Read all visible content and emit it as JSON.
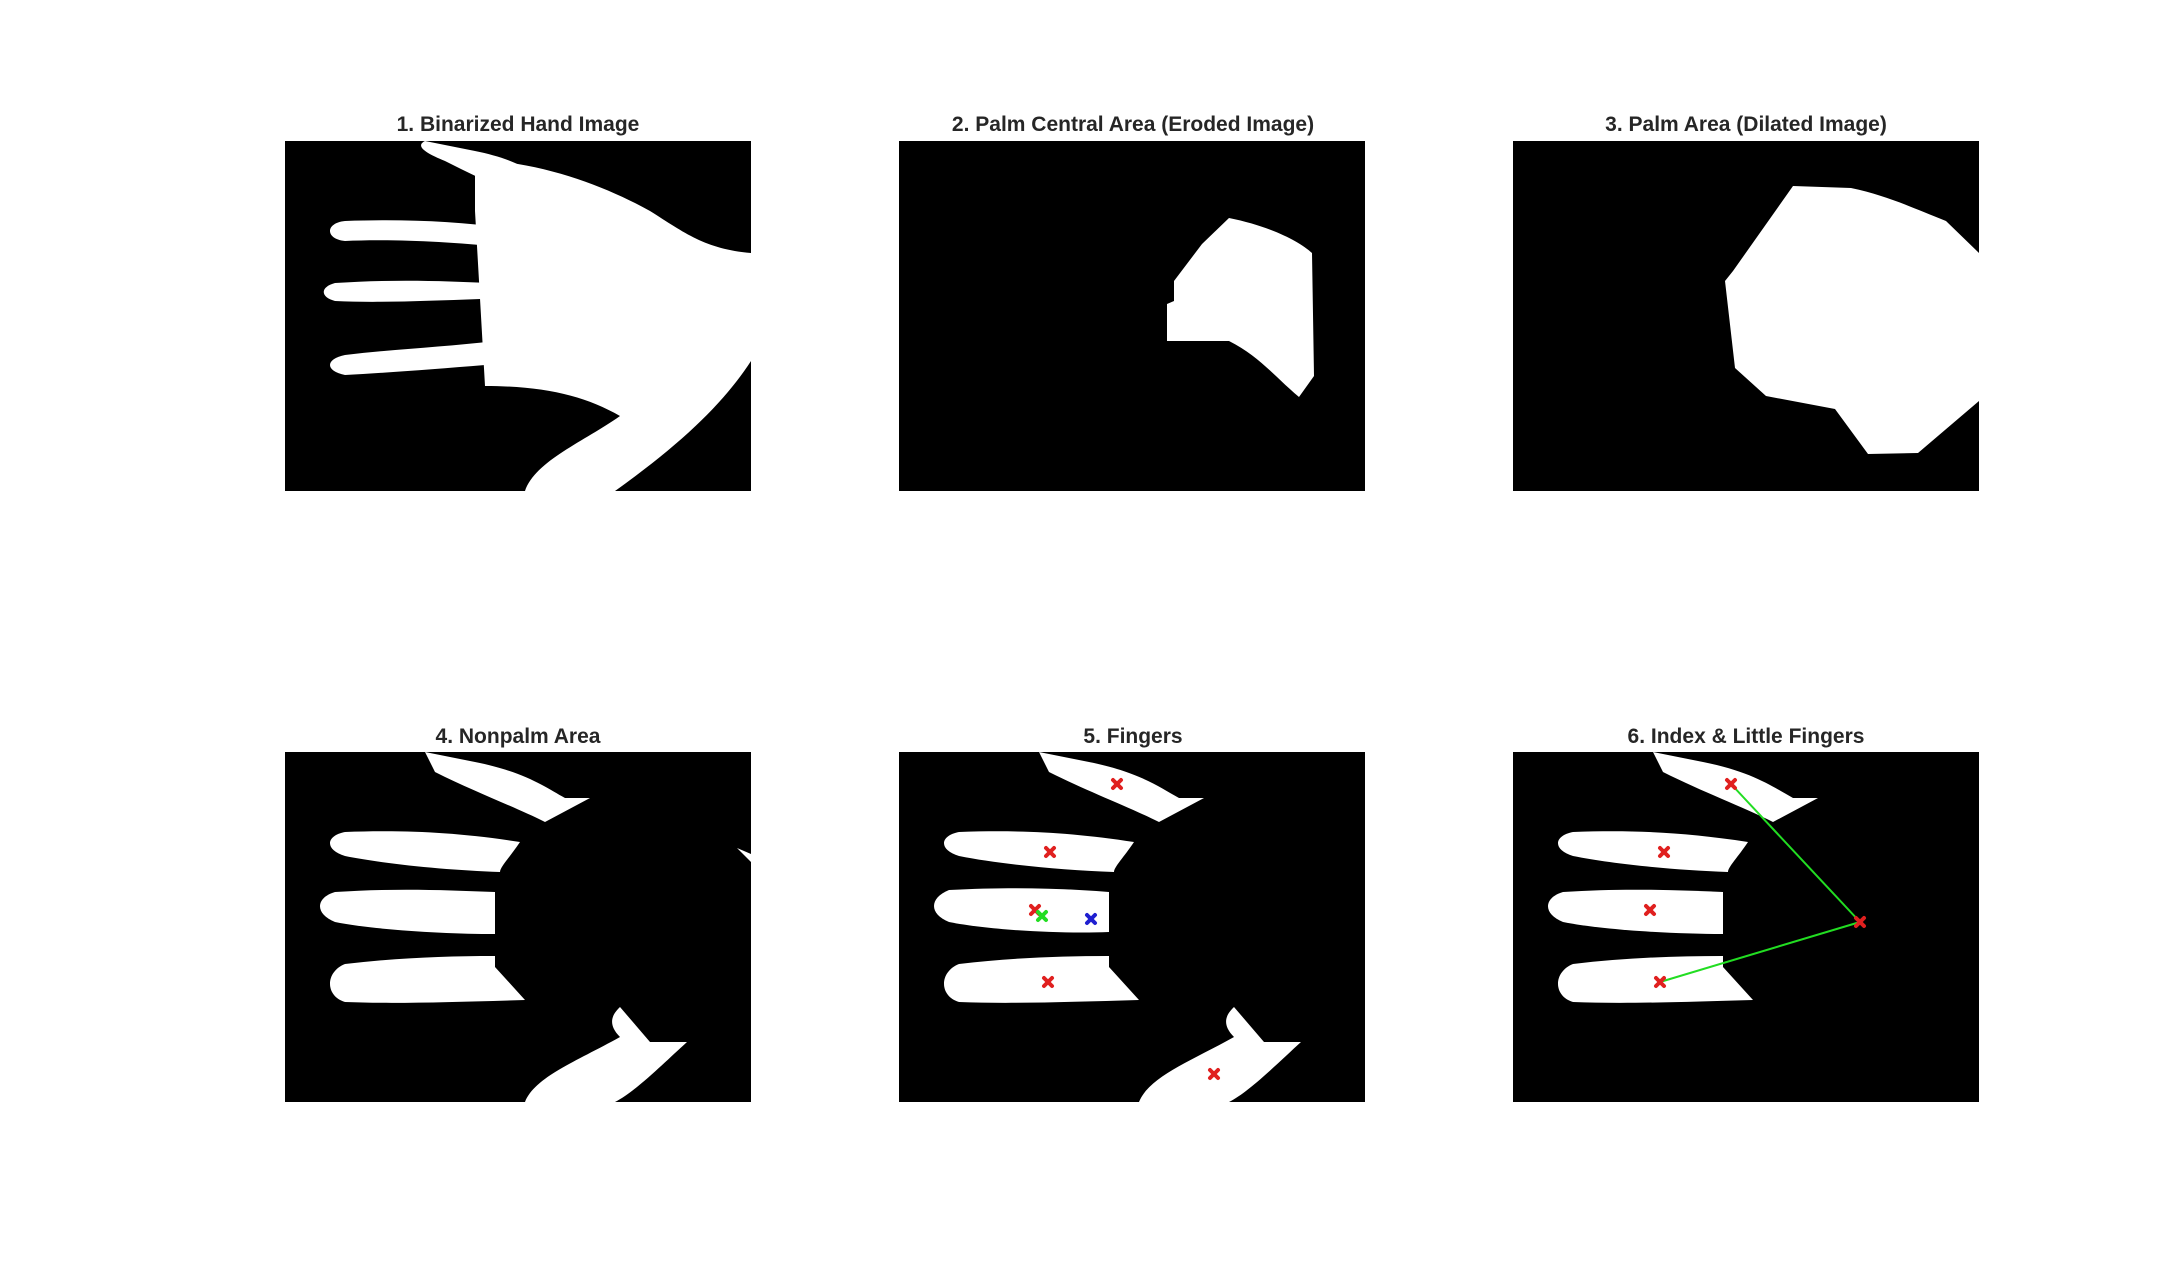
{
  "figure": {
    "panels": [
      {
        "title": "1. Binarized Hand Image"
      },
      {
        "title": "2. Palm Central Area (Eroded Image)"
      },
      {
        "title": "3. Palm Area (Dilated Image)"
      },
      {
        "title": "4. Nonpalm Area"
      },
      {
        "title": "5. Fingers"
      },
      {
        "title": "6. Index & Little Fingers"
      }
    ]
  },
  "colors": {
    "background": "#000000",
    "foreground": "#ffffff",
    "centroid_marker": "#e0201f",
    "palm_center_marker": "#1f1fd0",
    "thumb_marker": "#22dd22",
    "connection_line": "#22dd22"
  },
  "icons": {
    "marker": "x-cross-marker"
  }
}
